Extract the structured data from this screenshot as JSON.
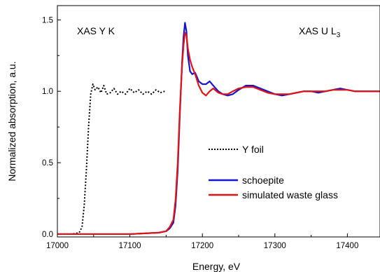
{
  "chart_data": {
    "type": "line",
    "title": "",
    "xlabel": "Energy, eV",
    "ylabel": "Normalized absorption, a.u.",
    "xlim": [
      17000,
      17445
    ],
    "ylim": [
      -0.02,
      1.6
    ],
    "xticks": [
      17000,
      17100,
      17200,
      17300,
      17400
    ],
    "xtick_labels": [
      "17000",
      "17100",
      "17200",
      "17300",
      "17400"
    ],
    "yticks": [
      0.0,
      0.5,
      1.0,
      1.5
    ],
    "ytick_labels": [
      "0.0",
      "0.5",
      "1.0",
      "1.5"
    ],
    "annotations": {
      "left": "XAS Y K",
      "right_main": "XAS U L",
      "right_sub": "3"
    },
    "legend_position": "right-center",
    "series": [
      {
        "name": "Y foil",
        "color": "#000000",
        "style": "dotted",
        "x": [
          17000,
          17010,
          17020,
          17030,
          17034,
          17037,
          17040,
          17043,
          17046,
          17049,
          17052,
          17056,
          17060,
          17064,
          17068,
          17073,
          17078,
          17083,
          17088,
          17094,
          17100,
          17106,
          17112,
          17118,
          17124,
          17130,
          17136,
          17142,
          17148
        ],
        "y": [
          0.0,
          0.0,
          0.0,
          0.01,
          0.05,
          0.2,
          0.45,
          0.75,
          0.98,
          1.05,
          1.01,
          1.03,
          0.99,
          1.04,
          0.98,
          0.99,
          1.02,
          0.98,
          1.0,
          0.98,
          1.02,
          0.99,
          1.01,
          0.98,
          1.0,
          0.98,
          1.01,
          0.99,
          1.0
        ]
      },
      {
        "name": "schoepite",
        "color": "#1414d2",
        "style": "solid",
        "x": [
          17000,
          17100,
          17140,
          17150,
          17155,
          17160,
          17163,
          17166,
          17169,
          17172,
          17174,
          17176,
          17178,
          17180,
          17183,
          17186,
          17190,
          17195,
          17200,
          17205,
          17210,
          17215,
          17222,
          17228,
          17235,
          17242,
          17250,
          17260,
          17270,
          17280,
          17290,
          17300,
          17310,
          17320,
          17330,
          17340,
          17350,
          17360,
          17370,
          17380,
          17390,
          17400,
          17410,
          17420,
          17430,
          17445
        ],
        "y": [
          0.0,
          0.0,
          0.01,
          0.02,
          0.04,
          0.08,
          0.2,
          0.45,
          0.85,
          1.2,
          1.38,
          1.48,
          1.42,
          1.25,
          1.14,
          1.12,
          1.13,
          1.07,
          1.05,
          1.05,
          1.07,
          1.04,
          1.0,
          0.98,
          0.97,
          0.98,
          1.01,
          1.04,
          1.04,
          1.02,
          1.0,
          0.98,
          0.97,
          0.98,
          0.99,
          1.0,
          1.0,
          0.99,
          1.0,
          1.01,
          1.02,
          1.01,
          1.0,
          1.0,
          1.0,
          1.0
        ]
      },
      {
        "name": "simulated waste glass",
        "color": "#e01414",
        "style": "solid",
        "x": [
          17000,
          17100,
          17140,
          17150,
          17155,
          17160,
          17163,
          17166,
          17169,
          17172,
          17174,
          17176,
          17178,
          17180,
          17183,
          17186,
          17190,
          17195,
          17200,
          17205,
          17210,
          17215,
          17222,
          17228,
          17235,
          17242,
          17250,
          17260,
          17270,
          17280,
          17290,
          17300,
          17310,
          17320,
          17330,
          17340,
          17350,
          17360,
          17370,
          17380,
          17390,
          17400,
          17410,
          17420,
          17430,
          17445
        ],
        "y": [
          0.0,
          0.0,
          0.01,
          0.02,
          0.05,
          0.1,
          0.24,
          0.5,
          0.88,
          1.18,
          1.32,
          1.41,
          1.39,
          1.3,
          1.22,
          1.17,
          1.12,
          1.04,
          0.99,
          0.97,
          1.0,
          1.02,
          0.99,
          0.98,
          0.98,
          1.0,
          1.02,
          1.03,
          1.03,
          1.01,
          0.99,
          0.98,
          0.98,
          0.98,
          0.99,
          1.0,
          1.0,
          1.0,
          1.0,
          1.01,
          1.01,
          1.01,
          1.0,
          1.0,
          1.0,
          1.0
        ]
      }
    ]
  }
}
